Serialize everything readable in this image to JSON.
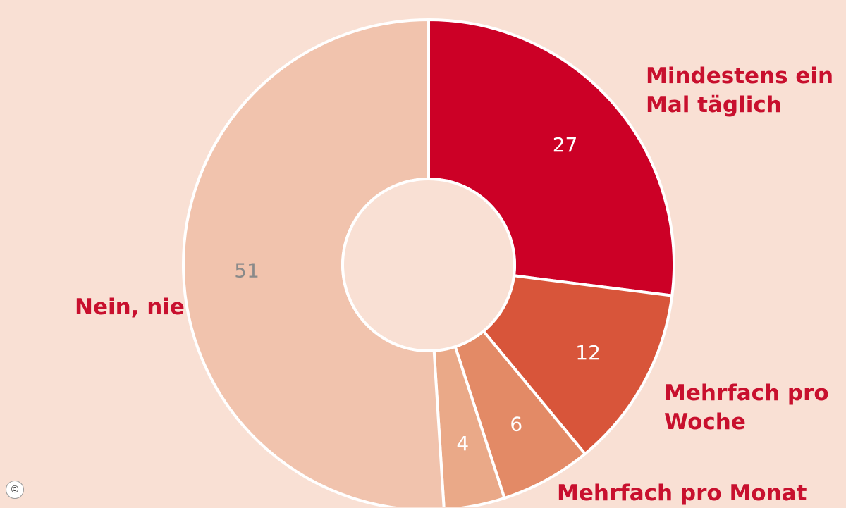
{
  "chart_data": {
    "type": "pie",
    "variant": "donut",
    "start_angle_deg": 0,
    "direction": "clockwise",
    "slices": [
      {
        "label_lines": [
          "Mindestens ein",
          "Mal täglich"
        ],
        "value": 27,
        "color": "#cc0026",
        "value_color": "#ffffff"
      },
      {
        "label_lines": [
          "Mehrfach pro",
          "Woche"
        ],
        "value": 12,
        "color": "#d8553a",
        "value_color": "#ffffff"
      },
      {
        "label_lines": [
          "Mehrfach pro Monat"
        ],
        "value": 6,
        "color": "#e38a66",
        "value_color": "#ffffff"
      },
      {
        "label_lines": [],
        "value": 4,
        "color": "#eaa988",
        "value_color": "#ffffff"
      },
      {
        "label_lines": [
          "Nein, nie"
        ],
        "value": 51,
        "color": "#f1c3ad",
        "value_color": "#8a8a8a"
      }
    ]
  },
  "colors": {
    "background": "#f9e0d4",
    "label_text": "#c8102e",
    "separator": "#ffffff"
  },
  "footer": {
    "copyright_symbol": "©"
  }
}
